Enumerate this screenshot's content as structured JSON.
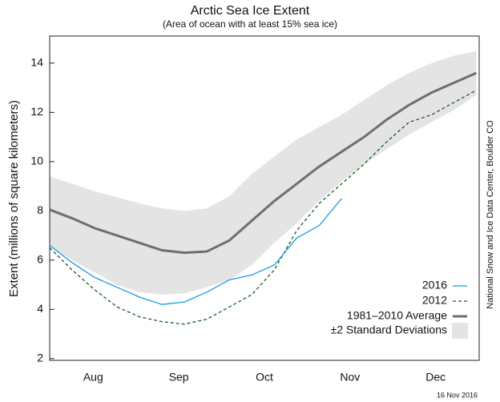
{
  "chart_data": {
    "type": "line",
    "title": "Arctic Sea Ice Extent",
    "subtitle": "(Area of ocean with at least 15% sea ice)",
    "y_label": "Extent (millions of square kilometers)",
    "source": "National Snow and Ice Data Center, Boulder CO",
    "date_note": "16 Nov 2016",
    "x": [
      0,
      8,
      16,
      24,
      32,
      40,
      48,
      56,
      64,
      72,
      80,
      88,
      96,
      104,
      112,
      120,
      128,
      136,
      144,
      152
    ],
    "xlim": [
      0,
      153
    ],
    "xticks": [
      {
        "value": 15.5,
        "label": "Aug"
      },
      {
        "value": 46,
        "label": "Sep"
      },
      {
        "value": 76.5,
        "label": "Oct"
      },
      {
        "value": 107,
        "label": "Nov"
      },
      {
        "value": 137.5,
        "label": "Dec"
      }
    ],
    "ylim": [
      1.93,
      15.1
    ],
    "yticks": [
      2,
      4,
      6,
      8,
      10,
      12,
      14
    ],
    "band": {
      "name": "±2 Standard Deviations",
      "color": "#e4e4e4",
      "upper": [
        9.4,
        9.1,
        8.8,
        8.55,
        8.3,
        8.1,
        8.0,
        8.1,
        8.6,
        9.5,
        10.2,
        10.9,
        11.4,
        11.9,
        12.5,
        13.1,
        13.6,
        14.0,
        14.3,
        14.5
      ],
      "lower": [
        6.6,
        6.0,
        5.5,
        5.0,
        4.7,
        4.6,
        4.65,
        4.9,
        5.2,
        5.8,
        6.7,
        7.5,
        8.4,
        9.2,
        9.9,
        10.5,
        11.1,
        11.6,
        12.1,
        12.7
      ]
    },
    "series": [
      {
        "name": "1981–2010 Average",
        "color": "#6e6e6e",
        "values": [
          8.05,
          7.7,
          7.3,
          7.0,
          6.7,
          6.4,
          6.3,
          6.35,
          6.8,
          7.6,
          8.4,
          9.1,
          9.8,
          10.4,
          11.0,
          11.7,
          12.3,
          12.8,
          13.2,
          13.6
        ]
      },
      {
        "name": "2012",
        "color": "#1b5e20",
        "values": [
          6.5,
          5.6,
          4.8,
          4.1,
          3.7,
          3.5,
          3.4,
          3.6,
          4.1,
          4.6,
          5.6,
          7.2,
          8.3,
          9.1,
          9.9,
          10.8,
          11.6,
          11.9,
          12.4,
          12.9
        ]
      },
      {
        "name": "2016",
        "color": "#1a9be0",
        "values": [
          6.6,
          5.9,
          5.3,
          4.9,
          4.5,
          4.2,
          4.3,
          4.7,
          5.2,
          5.4,
          5.8,
          6.9,
          7.4,
          8.5,
          null,
          null,
          null,
          null,
          null,
          null
        ]
      }
    ]
  }
}
